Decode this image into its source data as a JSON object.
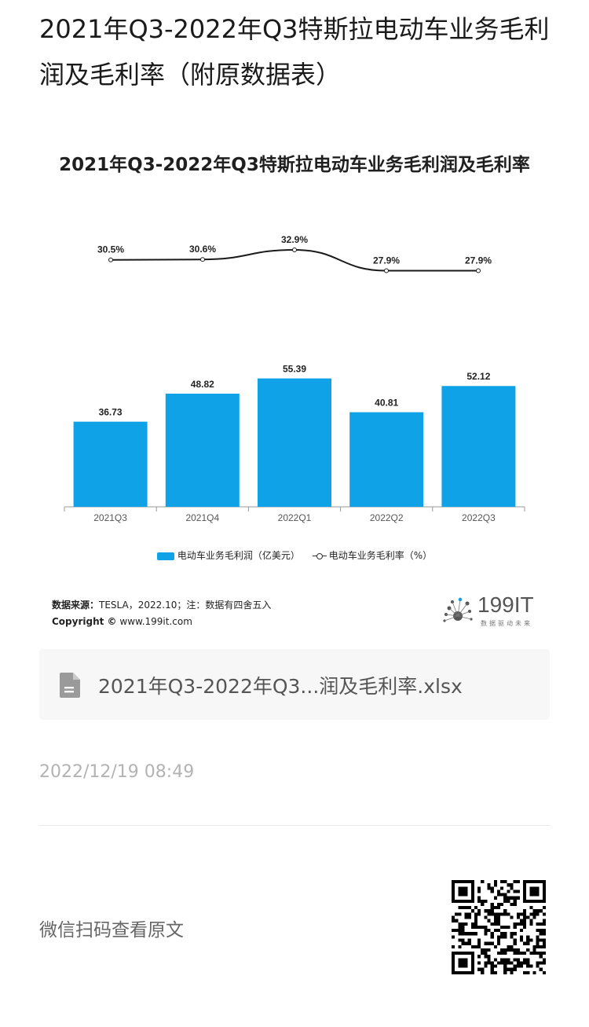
{
  "page": {
    "title": "2021年Q3-2022年Q3特斯拉电动车业务毛利润及毛利率（附原数据表）",
    "file_name": "2021年Q3-2022年Q3...润及毛利率.xlsx",
    "timestamp": "2022/12/19 08:49",
    "scan_label": "微信扫码查看原文"
  },
  "source": {
    "label": "数据来源：",
    "text": "TESLA，2022.10；注：数据有四舍五入",
    "copyright_label": "Copyright ©",
    "copyright_url": "www.199it.com"
  },
  "brand": {
    "name": "199IT",
    "slogan": "数据驱动未来"
  },
  "colors": {
    "bar": "#0fa2e6",
    "line": "#1a1a1a",
    "axis": "#999999"
  },
  "chart_data": {
    "type": "bar",
    "title": "2021年Q3-2022年Q3特斯拉电动车业务毛利润及毛利率",
    "categories": [
      "2021Q3",
      "2021Q4",
      "2022Q1",
      "2022Q2",
      "2022Q3"
    ],
    "series": [
      {
        "name": "电动车业务毛利润（亿美元）",
        "type": "bar",
        "values": [
          36.73,
          48.82,
          55.39,
          40.81,
          52.12
        ]
      },
      {
        "name": "电动车业务毛利率（%）",
        "type": "line",
        "values": [
          30.5,
          30.6,
          32.9,
          27.9,
          27.9
        ],
        "labels": [
          "30.5%",
          "30.6%",
          "32.9%",
          "27.9%",
          "27.9%"
        ]
      }
    ],
    "bar_labels": [
      "36.73",
      "48.82",
      "55.39",
      "40.81",
      "52.12"
    ],
    "legend": "bottom-center",
    "grid": false
  }
}
